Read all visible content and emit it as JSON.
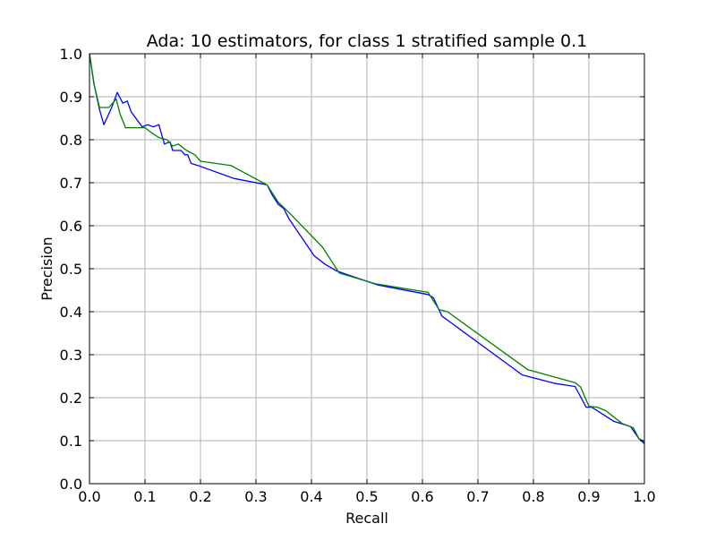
{
  "chart_data": {
    "type": "line",
    "title": "Ada: 10 estimators, for class 1 stratified sample 0.1",
    "xlabel": "Recall",
    "ylabel": "Precision",
    "xlim": [
      0.0,
      1.0
    ],
    "ylim": [
      0.0,
      1.0
    ],
    "xticks": [
      0.0,
      0.1,
      0.2,
      0.3,
      0.4,
      0.5,
      0.6,
      0.7,
      0.8,
      0.9,
      1.0
    ],
    "yticks": [
      0.0,
      0.1,
      0.2,
      0.3,
      0.4,
      0.5,
      0.6,
      0.7,
      0.8,
      0.9,
      1.0
    ],
    "xtick_labels": [
      "0.0",
      "0.1",
      "0.2",
      "0.3",
      "0.4",
      "0.5",
      "0.6",
      "0.7",
      "0.8",
      "0.9",
      "1.0"
    ],
    "ytick_labels": [
      "0.0",
      "0.1",
      "0.2",
      "0.3",
      "0.4",
      "0.5",
      "0.6",
      "0.7",
      "0.8",
      "0.9",
      "1.0"
    ],
    "grid": true,
    "series": [
      {
        "color": "#0000ff",
        "x": [
          0.0,
          0.008,
          0.018,
          0.026,
          0.04,
          0.05,
          0.06,
          0.068,
          0.075,
          0.095,
          0.105,
          0.115,
          0.125,
          0.135,
          0.145,
          0.15,
          0.165,
          0.172,
          0.177,
          0.18,
          0.183,
          0.2,
          0.26,
          0.32,
          0.33,
          0.34,
          0.35,
          0.36,
          0.405,
          0.425,
          0.445,
          0.52,
          0.61,
          0.62,
          0.635,
          0.78,
          0.84,
          0.875,
          0.895,
          0.905,
          0.945,
          0.975,
          0.99,
          1.0
        ],
        "y": [
          1.0,
          0.93,
          0.87,
          0.835,
          0.875,
          0.91,
          0.885,
          0.89,
          0.865,
          0.83,
          0.835,
          0.83,
          0.835,
          0.79,
          0.795,
          0.775,
          0.775,
          0.765,
          0.765,
          0.755,
          0.745,
          0.738,
          0.71,
          0.695,
          0.67,
          0.65,
          0.64,
          0.615,
          0.53,
          0.51,
          0.495,
          0.462,
          0.44,
          0.432,
          0.39,
          0.253,
          0.233,
          0.226,
          0.178,
          0.178,
          0.145,
          0.133,
          0.105,
          0.093
        ]
      },
      {
        "color": "#008000",
        "x": [
          0.0,
          0.008,
          0.018,
          0.035,
          0.048,
          0.055,
          0.065,
          0.1,
          0.11,
          0.125,
          0.14,
          0.15,
          0.16,
          0.175,
          0.19,
          0.2,
          0.255,
          0.32,
          0.34,
          0.36,
          0.42,
          0.45,
          0.515,
          0.61,
          0.63,
          0.645,
          0.79,
          0.875,
          0.885,
          0.9,
          0.915,
          0.93,
          0.96,
          0.98,
          0.99,
          1.0
        ],
        "y": [
          1.0,
          0.93,
          0.875,
          0.875,
          0.895,
          0.86,
          0.828,
          0.828,
          0.818,
          0.805,
          0.8,
          0.785,
          0.79,
          0.775,
          0.765,
          0.75,
          0.74,
          0.695,
          0.655,
          0.63,
          0.55,
          0.49,
          0.465,
          0.445,
          0.405,
          0.4,
          0.265,
          0.235,
          0.225,
          0.18,
          0.178,
          0.17,
          0.14,
          0.13,
          0.105,
          0.098
        ]
      }
    ]
  }
}
